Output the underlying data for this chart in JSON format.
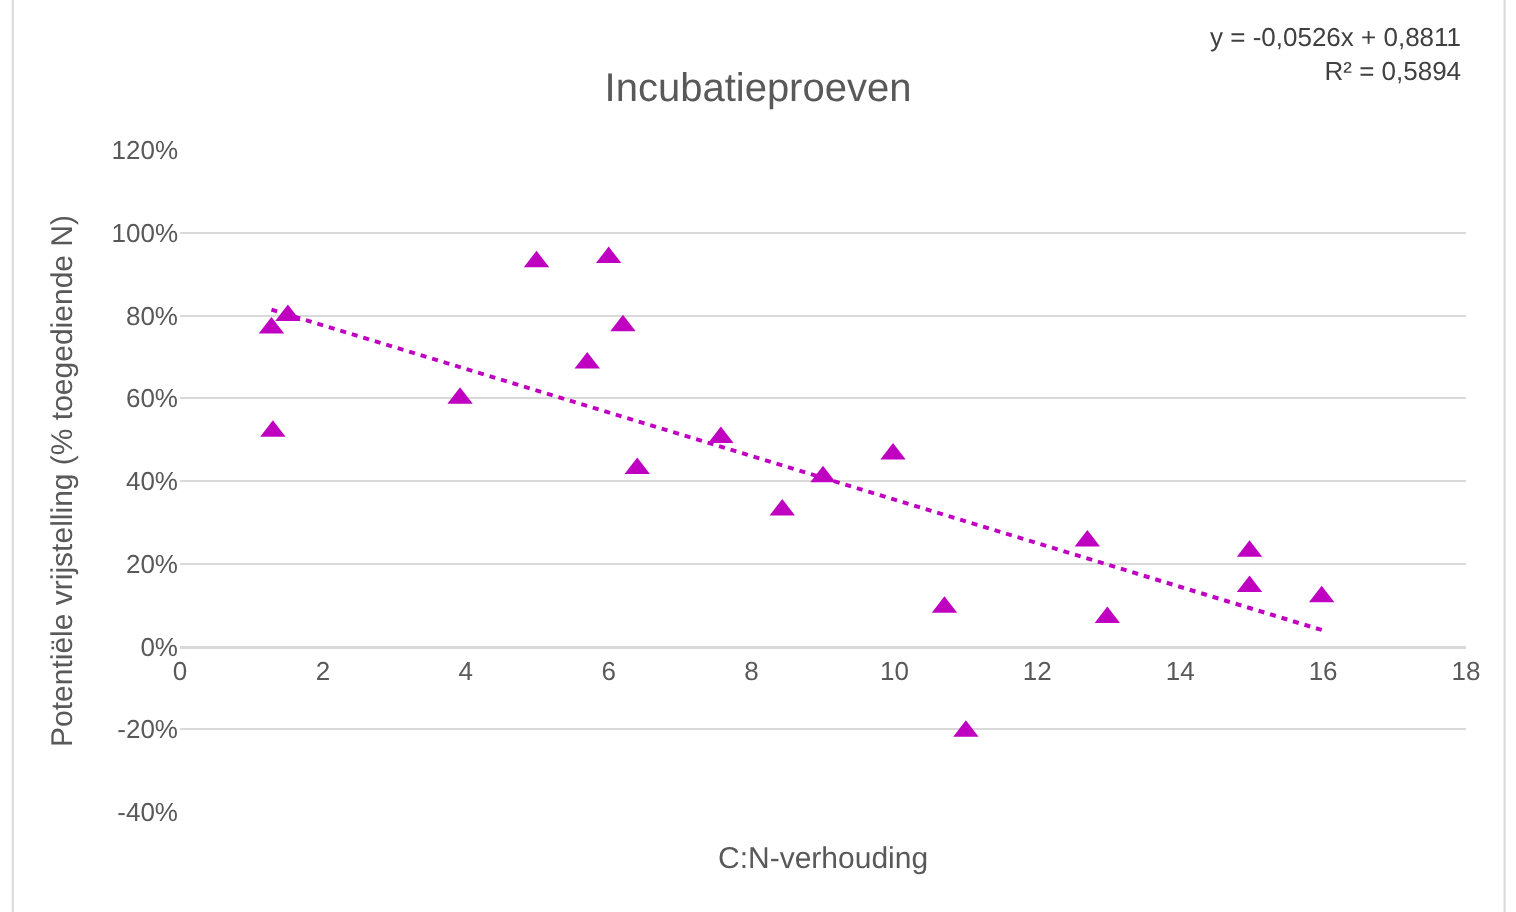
{
  "chart_data": {
    "type": "scatter",
    "title": "Incubatieproeven",
    "xlabel": "C:N-verhouding",
    "ylabel": "Potentiële vrijstelling (% toegediende N)",
    "annotations": [
      "y = -0,0526x + 0,8811\nR² = 0,5894"
    ],
    "series": [
      {
        "color": "#c000c0",
        "marker": "triangle",
        "x": [
          1.28,
          1.51,
          1.3,
          3.92,
          4.99,
          6.0,
          5.7,
          6.2,
          6.4,
          7.57,
          8.43,
          9.0,
          9.98,
          10.7,
          11.0,
          12.7,
          12.98,
          14.97,
          14.97,
          15.98
        ],
        "values": [
          77,
          80,
          52,
          60,
          93,
          94,
          68.5,
          77.5,
          43,
          50.5,
          33,
          41,
          46.5,
          9.5,
          -20.5,
          25.5,
          7,
          23,
          14.5,
          12
        ]
      },
      {
        "type": "line",
        "color": "#c000c0",
        "marker": "none",
        "line_style": "dotted",
        "x": [
          1.28,
          15.98
        ],
        "values": [
          81.4,
          4.0
        ]
      }
    ],
    "xlim": [
      0,
      18
    ],
    "xticks": [
      0,
      2,
      4,
      6,
      8,
      10,
      12,
      14,
      16,
      18
    ],
    "ylim": [
      -40,
      120
    ],
    "yticks": [
      {
        "value": -40,
        "label": "-40%"
      },
      {
        "value": -20,
        "label": "-20%"
      },
      {
        "value": 0,
        "label": "0%"
      },
      {
        "value": 20,
        "label": "20%"
      },
      {
        "value": 40,
        "label": "40%"
      },
      {
        "value": 60,
        "label": "60%"
      },
      {
        "value": 80,
        "label": "80%"
      },
      {
        "value": 100,
        "label": "100%"
      },
      {
        "value": 120,
        "label": "120%"
      }
    ],
    "grid": "y"
  }
}
